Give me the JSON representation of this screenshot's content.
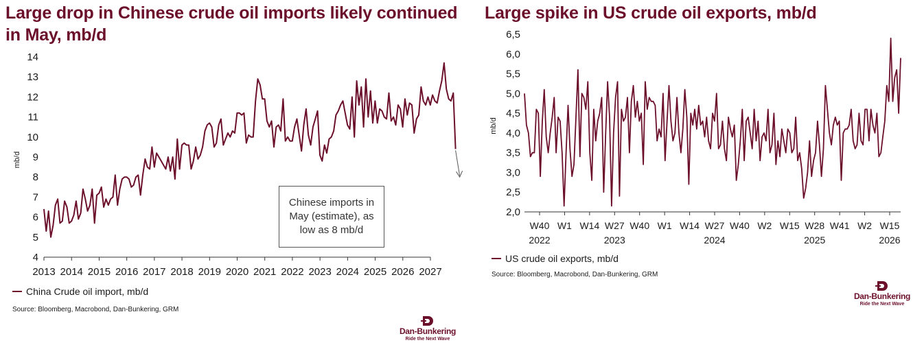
{
  "left": {
    "title": "Large drop in Chinese crude oil imports likely continued in May, mb/d",
    "legend": "China Crude oil import, mb/d",
    "source": "Source: Bloomberg, Macrobond, Dan-Bunkering, GRM",
    "annotation": "Chinese imports in May (estimate), as low as 8 mb/d"
  },
  "right": {
    "title": "Large spike in US crude oil exports, mb/d",
    "legend": "US crude oil exports, mb/d",
    "source": "Source: Bloomberg, Macrobond, Dan-Bunkering, GRM"
  },
  "logo": {
    "name": "Dan-Bunkering",
    "tagline": "Ride the Next Wave"
  },
  "colors": {
    "series": "#6b0f2b",
    "title": "#6b0f2b"
  },
  "chart_data": [
    {
      "type": "line",
      "title": "Large drop in Chinese crude oil imports likely continued in May, mb/d",
      "ylabel": "mb/d",
      "xlabel": "",
      "ylim": [
        4,
        14
      ],
      "yticks": [
        4,
        5,
        6,
        7,
        8,
        9,
        10,
        11,
        12,
        13,
        14
      ],
      "xlim": [
        2013,
        2027
      ],
      "xticks": [
        "2013",
        "2014",
        "2015",
        "2016",
        "2017",
        "2018",
        "2019",
        "2020",
        "2021",
        "2022",
        "2023",
        "2024",
        "2025",
        "2026",
        "2027"
      ],
      "legend": "bottom-left",
      "grid": false,
      "series": [
        {
          "name": "China Crude oil import, mb/d",
          "x_start": 2013.0,
          "x_step": 0.0833,
          "values": [
            6.4,
            5.3,
            6.3,
            5.0,
            5.6,
            6.6,
            6.9,
            5.7,
            5.8,
            6.8,
            6.5,
            5.7,
            5.8,
            6.1,
            6.8,
            5.9,
            6.2,
            7.4,
            6.9,
            6.3,
            6.6,
            7.4,
            5.7,
            7.1,
            7.2,
            7.5,
            6.5,
            6.9,
            6.6,
            6.9,
            7.0,
            8.1,
            6.6,
            7.4,
            7.9,
            8.0,
            8.0,
            7.9,
            7.5,
            7.6,
            8.0,
            8.1,
            7.1,
            8.1,
            8.9,
            8.5,
            8.4,
            9.5,
            8.5,
            9.2,
            9.0,
            8.8,
            8.6,
            8.4,
            9.0,
            8.3,
            9.0,
            7.9,
            9.9,
            8.4,
            9.6,
            9.7,
            9.6,
            9.6,
            8.4,
            8.8,
            9.5,
            8.9,
            9.1,
            9.5,
            10.3,
            10.6,
            10.7,
            10.5,
            9.5,
            9.7,
            10.6,
            10.9,
            9.6,
            9.9,
            10.2,
            10.0,
            10.3,
            10.2,
            11.2,
            11.2,
            11.1,
            11.2,
            9.7,
            10.1,
            10.0,
            10.0,
            11.8,
            12.9,
            12.6,
            11.9,
            11.9,
            10.8,
            10.5,
            10.8,
            9.5,
            10.5,
            10.6,
            10.3,
            11.9,
            9.8,
            10.0,
            9.8,
            9.8,
            10.5,
            10.9,
            10.1,
            9.3,
            10.6,
            11.4,
            10.1,
            9.6,
            10.5,
            10.9,
            11.3,
            9.1,
            8.8,
            9.6,
            9.2,
            9.9,
            10.0,
            10.3,
            11.1,
            11.3,
            11.6,
            11.8,
            11.2,
            10.6,
            10.4,
            12.0,
            10.0,
            12.8,
            11.6,
            12.5,
            10.5,
            12.9,
            11.0,
            12.3,
            10.7,
            11.8,
            10.7,
            11.4,
            11.3,
            11.0,
            10.9,
            12.2,
            10.8,
            11.0,
            10.6,
            11.6,
            11.4,
            10.5,
            11.9,
            11.1,
            11.7,
            11.6,
            10.2,
            10.9,
            11.1,
            12.5,
            11.8,
            11.6,
            12.0,
            11.6,
            12.1,
            11.8,
            11.7,
            12.3,
            12.8,
            13.7,
            12.4,
            11.9,
            11.8,
            12.2,
            9.4
          ]
        }
      ],
      "annotations": [
        "Chinese imports in May (estimate), as low as 8 mb/d"
      ]
    },
    {
      "type": "line",
      "title": "Large spike in US crude oil exports, mb/d",
      "ylabel": "mb/d",
      "xlabel": "",
      "ylim": [
        2.0,
        6.5
      ],
      "yticks": [
        "2,0",
        "2,5",
        "3,0",
        "3,5",
        "4,0",
        "4,5",
        "5,0",
        "5,5",
        "6,0",
        "6,5"
      ],
      "xticks": [
        [
          "W40",
          "2022"
        ],
        [
          "W1",
          ""
        ],
        [
          "W14",
          ""
        ],
        [
          "W27",
          "2023"
        ],
        [
          "W40",
          ""
        ],
        [
          "W1",
          ""
        ],
        [
          "W14",
          ""
        ],
        [
          "W27",
          "2024"
        ],
        [
          "W40",
          ""
        ],
        [
          "W2",
          ""
        ],
        [
          "W15",
          ""
        ],
        [
          "W28",
          "2025"
        ],
        [
          "W41",
          ""
        ],
        [
          "W2",
          ""
        ],
        [
          "W15",
          "2026"
        ]
      ],
      "legend": "bottom-left",
      "grid": false,
      "series": [
        {
          "name": "US crude oil exports, mb/d",
          "values": [
            5.0,
            4.2,
            4.0,
            3.4,
            3.5,
            3.5,
            4.6,
            4.5,
            2.9,
            4.3,
            5.1,
            3.9,
            3.5,
            4.0,
            4.4,
            4.9,
            3.5,
            4.4,
            4.3,
            3.5,
            2.15,
            3.5,
            4.7,
            3.6,
            2.9,
            3.2,
            4.4,
            5.6,
            3.4,
            5.0,
            4.9,
            4.6,
            5.3,
            3.5,
            2.8,
            4.6,
            3.8,
            4.3,
            4.5,
            4.9,
            2.5,
            4.0,
            5.3,
            4.4,
            2.15,
            4.0,
            4.9,
            5.3,
            2.4,
            4.6,
            4.3,
            4.4,
            4.9,
            3.5,
            4.8,
            5.2,
            4.4,
            4.8,
            4.3,
            4.5,
            3.2,
            5.3,
            4.6,
            4.9,
            4.8,
            4.8,
            4.7,
            3.8,
            4.1,
            3.9,
            5.0,
            3.3,
            4.3,
            5.2,
            4.3,
            3.8,
            4.0,
            4.9,
            4.0,
            3.5,
            4.1,
            5.1,
            4.4,
            2.7,
            4.5,
            4.2,
            4.6,
            4.1,
            4.7,
            4.2,
            4.3,
            3.9,
            4.4,
            3.8,
            3.6,
            4.5,
            4.3,
            5.0,
            3.6,
            3.7,
            4.3,
            3.6,
            3.3,
            4.4,
            4.1,
            3.9,
            4.2,
            2.8,
            3.2,
            3.8,
            4.6,
            3.3,
            4.3,
            4.4,
            4.0,
            3.6,
            4.6,
            3.8,
            4.3,
            3.3,
            3.9,
            4.0,
            3.8,
            4.6,
            3.5,
            3.7,
            4.5,
            3.2,
            3.8,
            3.4,
            4.1,
            3.8,
            3.5,
            4.1,
            4.0,
            3.5,
            3.6,
            4.4,
            3.3,
            3.5,
            3.1,
            2.35,
            2.6,
            3.0,
            3.8,
            2.9,
            3.3,
            3.5,
            4.3,
            3.7,
            2.9,
            3.6,
            5.2,
            4.6,
            4.0,
            3.7,
            4.2,
            4.4,
            4.2,
            4.3,
            2.8,
            4.0,
            4.1,
            4.1,
            4.2,
            4.6,
            3.8,
            3.6,
            3.7,
            4.5,
            3.8,
            3.7,
            4.6,
            4.6,
            3.8,
            4.6,
            4.2,
            4.0,
            4.5,
            3.4,
            3.5,
            3.9,
            4.3,
            5.2,
            4.8,
            6.4,
            4.8,
            5.4,
            5.6,
            4.5,
            5.9
          ]
        }
      ]
    }
  ]
}
